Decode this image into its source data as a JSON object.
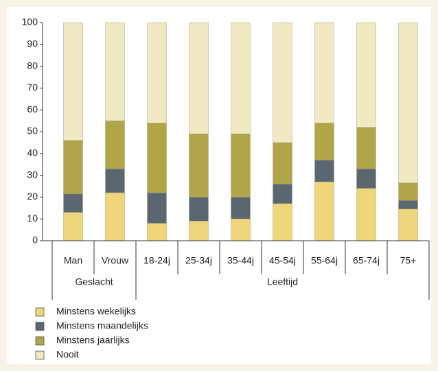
{
  "chart_data": {
    "type": "stacked-bar",
    "groups": [
      {
        "name": "Geslacht",
        "categories": [
          "Man",
          "Vrouw"
        ]
      },
      {
        "name": "Leeftijd",
        "categories": [
          "18-24j",
          "25-34j",
          "35-44j",
          "45-54j",
          "55-64j",
          "65-74j",
          "75+"
        ]
      }
    ],
    "series": [
      {
        "name": "Minstens wekelijks",
        "color": "#f0d67a",
        "values": [
          13,
          22,
          8,
          9,
          10,
          17,
          27,
          24,
          14.5
        ]
      },
      {
        "name": "Minstens maandelijks",
        "color": "#5b6770",
        "values": [
          8.5,
          11,
          14,
          11,
          10,
          9,
          10,
          9,
          4
        ]
      },
      {
        "name": "Minstens jaarlijks",
        "color": "#b1a54a",
        "values": [
          24.5,
          22,
          32,
          29,
          29,
          19,
          17,
          19,
          8
        ]
      },
      {
        "name": "Nooit",
        "color": "#f1e9c2",
        "values": [
          54,
          45,
          46,
          51,
          51,
          55,
          46,
          48,
          73.5
        ]
      }
    ],
    "ylim": [
      0,
      100
    ],
    "yticks": [
      0,
      10,
      20,
      30,
      40,
      50,
      60,
      70,
      80,
      90,
      100
    ]
  }
}
